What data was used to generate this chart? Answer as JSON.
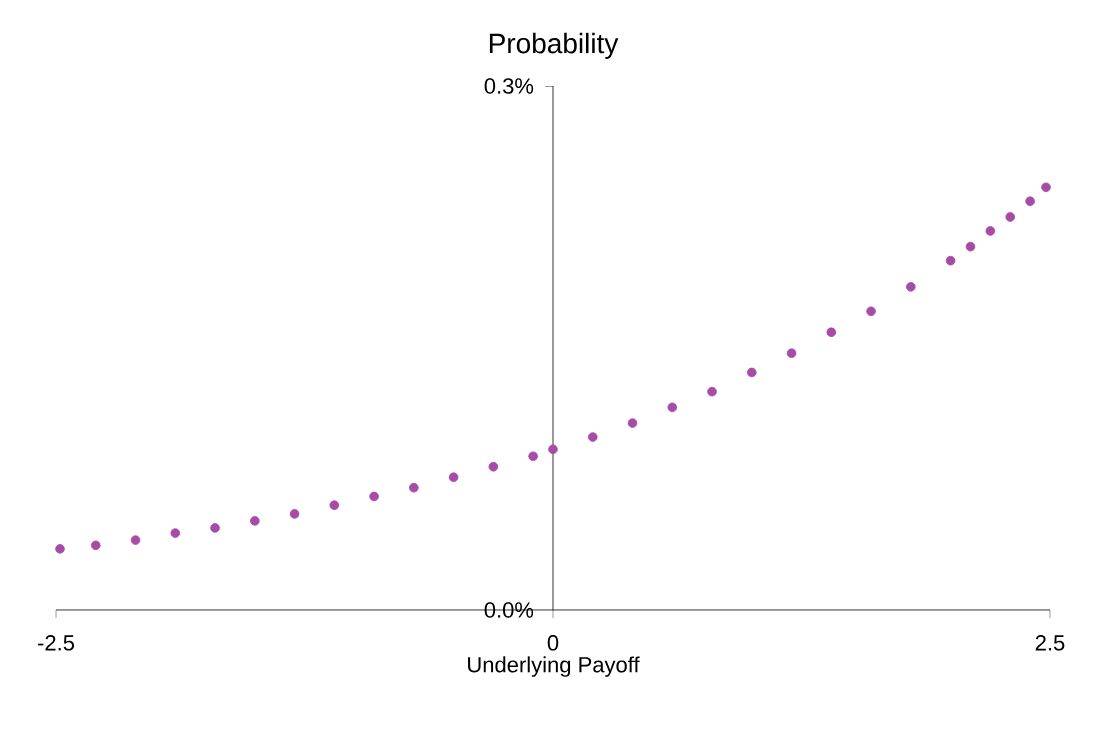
{
  "chart_data": {
    "type": "scatter",
    "title": "Probability",
    "xlabel": "Underlying Payoff",
    "x": [
      -2.48,
      -2.3,
      -2.1,
      -1.9,
      -1.7,
      -1.5,
      -1.3,
      -1.1,
      -0.9,
      -0.7,
      -0.5,
      -0.3,
      -0.1,
      0,
      0.2,
      0.4,
      0.6,
      0.8,
      1.0,
      1.2,
      1.4,
      1.6,
      1.8,
      2.0,
      2.1,
      2.2,
      2.3,
      2.4,
      2.48
    ],
    "series": [
      {
        "color": "#a64ca6",
        "values": [
          0.035,
          0.037,
          0.04,
          0.044,
          0.047,
          0.051,
          0.055,
          0.06,
          0.065,
          0.07,
          0.076,
          0.082,
          0.088,
          0.092,
          0.099,
          0.107,
          0.116,
          0.125,
          0.136,
          0.147,
          0.159,
          0.171,
          0.185,
          0.2,
          0.208,
          0.217,
          0.225,
          0.234,
          0.242
        ]
      }
    ],
    "xlim": [
      -2.5,
      2.5
    ],
    "ylim": [
      0,
      0.3
    ],
    "xticks": [
      -2.5,
      0,
      2.5
    ],
    "yticks": [
      {
        "value": 0,
        "label": "0.0%"
      },
      {
        "value": 0.3,
        "label": "0.3%"
      }
    ],
    "marker": "circle",
    "grid": false
  }
}
